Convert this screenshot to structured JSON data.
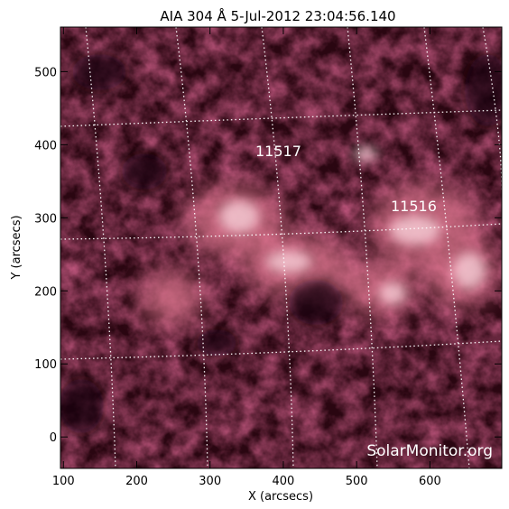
{
  "title": "AIA 304 Å  5-Jul-2012 23:04:56.140",
  "axes": {
    "xlabel": "X (arcsecs)",
    "ylabel": "Y (arcsecs)",
    "x_ticks": [
      "100",
      "200",
      "300",
      "400",
      "500",
      "600"
    ],
    "y_ticks": [
      "0",
      "100",
      "200",
      "300",
      "400",
      "500"
    ],
    "xlim": [
      96,
      698
    ],
    "ylim": [
      -43,
      561
    ]
  },
  "regions": [
    {
      "label": "11517"
    },
    {
      "label": "11516"
    }
  ],
  "watermark": "SolarMonitor.org",
  "colors": {
    "background": "#ffffff",
    "image_dark": "#1a0308",
    "image_mid": "#8c1c38",
    "image_bright": "#f2c2cc",
    "grid": "#ffffff",
    "text": "#000000"
  }
}
